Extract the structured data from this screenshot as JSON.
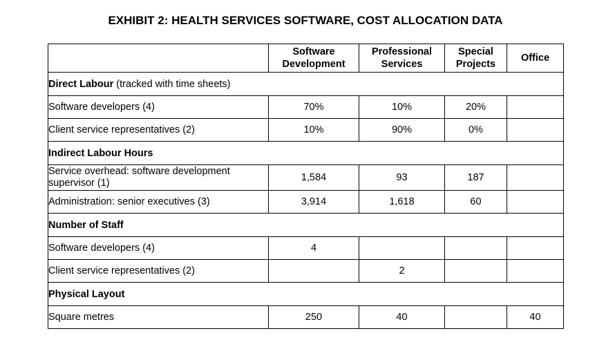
{
  "title": "EXHIBIT 2: HEALTH SERVICES SOFTWARE, COST ALLOCATION DATA",
  "headers": {
    "col1": [
      "Software",
      "Development"
    ],
    "col2": [
      "Professional",
      "Services"
    ],
    "col3": [
      "Special",
      "Projects"
    ],
    "col4": "Office"
  },
  "sections": {
    "direct_labour": {
      "label": "Direct Labour",
      "note": " (tracked with time sheets)",
      "rows": [
        {
          "label": "Software developers (4)",
          "values": [
            "70%",
            "10%",
            "20%",
            ""
          ]
        },
        {
          "label": "Client service representatives (2)",
          "values": [
            "10%",
            "90%",
            "0%",
            ""
          ]
        }
      ]
    },
    "indirect_labour": {
      "label": "Indirect Labour Hours",
      "rows": [
        {
          "label": "Service overhead: software development supervisor (1)",
          "values": [
            "1,584",
            "93",
            "187",
            ""
          ]
        },
        {
          "label": "Administration: senior executives (3)",
          "values": [
            "3,914",
            "1,618",
            "60",
            ""
          ]
        }
      ]
    },
    "number_of_staff": {
      "label": "Number of Staff",
      "rows": [
        {
          "label": "Software developers (4)",
          "values": [
            "4",
            "",
            "",
            ""
          ]
        },
        {
          "label": "Client service representatives (2)",
          "values": [
            "",
            "2",
            "",
            ""
          ]
        }
      ]
    },
    "physical_layout": {
      "label": "Physical Layout",
      "rows": [
        {
          "label": "Square metres",
          "values": [
            "250",
            "40",
            "",
            "40"
          ]
        }
      ]
    }
  }
}
